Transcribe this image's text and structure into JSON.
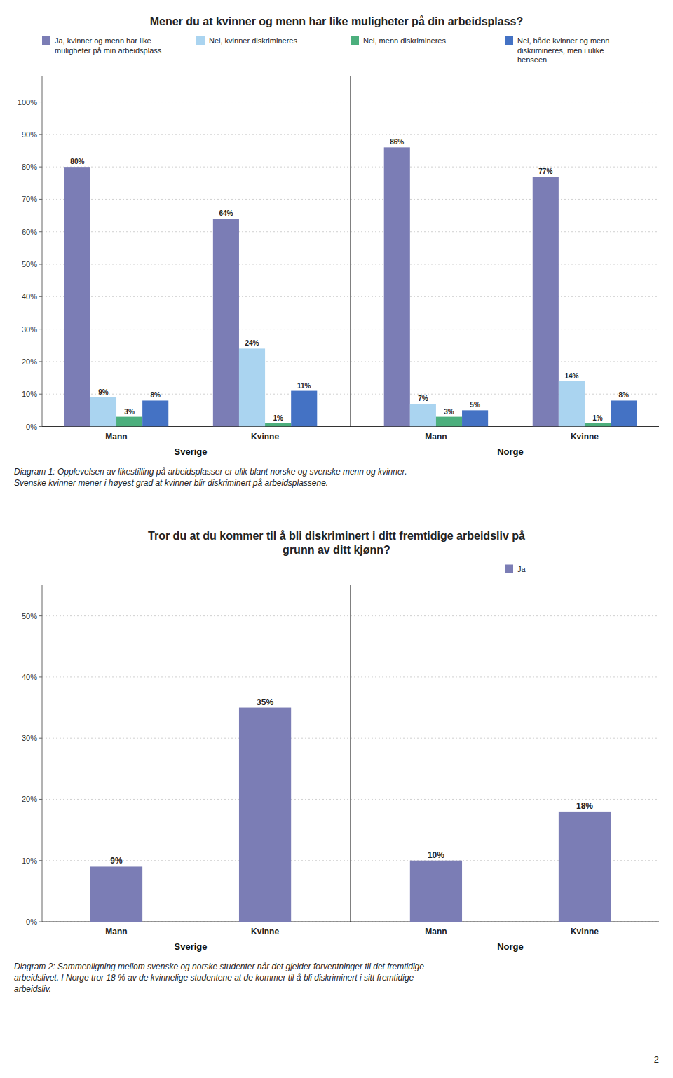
{
  "chart_data": [
    {
      "type": "bar",
      "title": "Mener du at kvinner og menn har like muligheter på din arbeidsplass?",
      "categories": [
        "Mann",
        "Kvinne",
        "Mann",
        "Kvinne"
      ],
      "groups": [
        "Sverige",
        "Norge"
      ],
      "series": [
        {
          "name": "Ja, kvinner og menn har like\nmuligheter på min arbeidsplass",
          "color": "#7b7db5",
          "values": [
            80,
            64,
            86,
            77
          ],
          "value_labels": [
            "80%",
            "64%",
            "86%",
            "77%"
          ]
        },
        {
          "name": "Nei, kvinner diskrimineres",
          "color": "#aad4f0",
          "values": [
            9,
            24,
            7,
            14
          ],
          "value_labels": [
            "9%",
            "24%",
            "7%",
            "14%"
          ]
        },
        {
          "name": "Nei, menn diskrimineres",
          "color": "#4caf7d",
          "values": [
            3,
            1,
            3,
            1
          ],
          "value_labels": [
            "3%",
            "1%",
            "3%",
            "1%"
          ]
        },
        {
          "name": "Nei, både kvinner og menn\ndiskrimineres, men i ulike\nhenseen",
          "color": "#4472c4",
          "values": [
            8,
            11,
            5,
            8
          ],
          "value_labels": [
            "8%",
            "11%",
            "5%",
            "8%"
          ]
        }
      ],
      "ylim": [
        0,
        108
      ],
      "yticks": [
        {
          "value": 0,
          "label": "0%"
        },
        {
          "value": 10,
          "label": "10%"
        },
        {
          "value": 20,
          "label": "20%"
        },
        {
          "value": 30,
          "label": "30%"
        },
        {
          "value": 40,
          "label": "40%"
        },
        {
          "value": 50,
          "label": "50%"
        },
        {
          "value": 60,
          "label": "60%"
        },
        {
          "value": 70,
          "label": "70%"
        },
        {
          "value": 80,
          "label": "80%"
        },
        {
          "value": 90,
          "label": "90%"
        },
        {
          "value": 100,
          "label": "100%"
        }
      ],
      "grid": true,
      "legend": "top",
      "data_labels": true,
      "annotations": [
        "Diagram 1: Opplevelsen av likestilling på arbeidsplasser er ulik blant norske og svenske menn og kvinner.\nSvenske kvinner mener i høyest grad at kvinner blir diskriminert på arbeidsplassene."
      ]
    },
    {
      "type": "bar",
      "title": "Tror du at du kommer til å bli diskriminert i ditt fremtidige arbeidsliv på\ngrunn av ditt kjønn?",
      "categories": [
        "Mann",
        "Kvinne",
        "Mann",
        "Kvinne"
      ],
      "groups": [
        "Sverige",
        "Norge"
      ],
      "series": [
        {
          "name": "Ja",
          "color": "#7b7db5",
          "values": [
            9,
            35,
            10,
            18
          ],
          "value_labels": [
            "9%",
            "35%",
            "10%",
            "18%"
          ]
        }
      ],
      "ylim": [
        0,
        55
      ],
      "yticks": [
        {
          "value": 0,
          "label": "0%"
        },
        {
          "value": 10,
          "label": "10%"
        },
        {
          "value": 20,
          "label": "20%"
        },
        {
          "value": 30,
          "label": "30%"
        },
        {
          "value": 40,
          "label": "40%"
        },
        {
          "value": 50,
          "label": "50%"
        }
      ],
      "grid": true,
      "legend": "top",
      "data_labels": true,
      "annotations": [
        "Diagram 2: Sammenligning mellom svenske og norske studenter når det gjelder forventninger til det fremtidige\narbeidslivet. I Norge tror 18 % av de kvinnelige studentene at de kommer til å bli diskriminert i sitt fremtidige\narbeidsliv."
      ]
    }
  ],
  "page_number": "2"
}
